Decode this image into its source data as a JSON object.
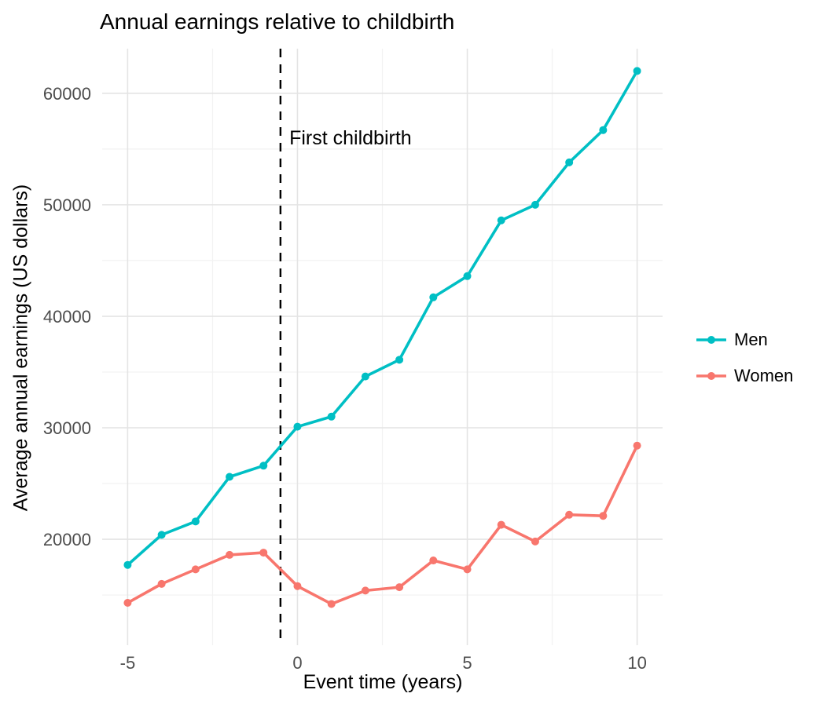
{
  "chart_data": {
    "type": "line",
    "title": "Annual earnings relative to childbirth",
    "xlabel": "Event time (years)",
    "ylabel": "Average annual earnings (US dollars)",
    "x": [
      -5,
      -4,
      -3,
      -2,
      -1,
      0,
      1,
      2,
      3,
      4,
      5,
      6,
      7,
      8,
      9,
      10
    ],
    "series": [
      {
        "name": "Men",
        "color": "#00BFC4",
        "values": [
          17700,
          20400,
          21600,
          25600,
          26600,
          30100,
          31000,
          34600,
          36100,
          41700,
          43600,
          48600,
          50000,
          53800,
          56700,
          62000
        ]
      },
      {
        "name": "Women",
        "color": "#F8766D",
        "values": [
          14300,
          16000,
          17300,
          18600,
          18800,
          15800,
          14200,
          15400,
          15700,
          18100,
          17300,
          21300,
          19800,
          22200,
          22100,
          28400
        ]
      }
    ],
    "x_ticks": [
      -5,
      0,
      5,
      10
    ],
    "y_ticks": [
      20000,
      30000,
      40000,
      50000,
      60000
    ],
    "x_minor": [
      -2.5,
      2.5,
      7.5
    ],
    "y_minor": [
      15000,
      25000,
      35000,
      45000,
      55000
    ],
    "xlim": [
      -5.75,
      10.75
    ],
    "ylim": [
      10500,
      64000
    ],
    "grid": true,
    "legend_position": "right",
    "vline": {
      "x": -0.5,
      "style": "dashed",
      "color": "#000000"
    },
    "annotation": {
      "text": "First childbirth",
      "x": -0.24,
      "y": 55400
    }
  }
}
